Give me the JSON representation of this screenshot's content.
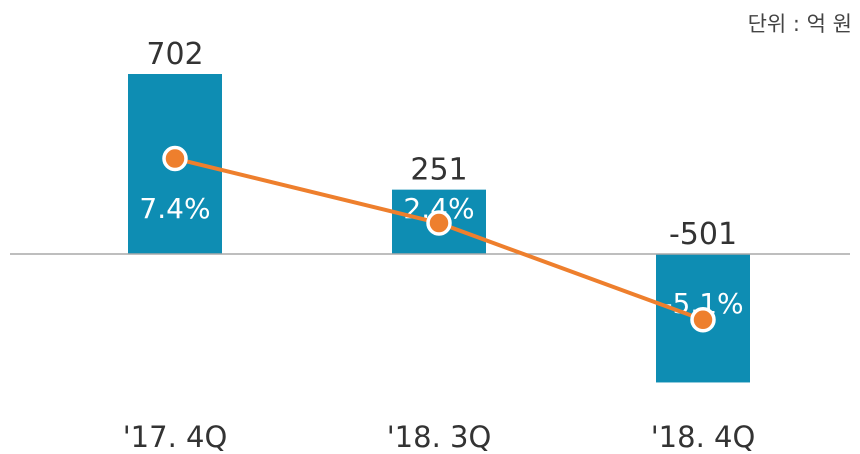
{
  "unit_label": "단위 : 억 원",
  "colors": {
    "bar": "#0e8db3",
    "line": "#ee7f2d",
    "axis": "#a9a9a9",
    "label": "#333333",
    "inside_label": "#ffffff"
  },
  "chart_data": {
    "type": "bar",
    "categories": [
      "'17. 4Q",
      "'18. 3Q",
      "'18. 4Q"
    ],
    "series": [
      {
        "values": [
          702,
          251,
          -501
        ],
        "value_labels": [
          "702",
          "251",
          "-501"
        ]
      },
      {
        "type": "line",
        "values": [
          7.4,
          2.4,
          -5.1
        ],
        "value_labels": [
          "7.4%",
          "2.4%",
          "-5.1%"
        ]
      }
    ]
  }
}
